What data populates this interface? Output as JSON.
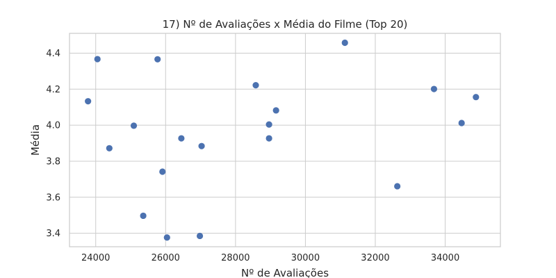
{
  "chart_data": {
    "type": "scatter",
    "title": "17) Nº de Avaliações x Média do Filme (Top 20)",
    "xlabel": "Nº de Avaliações",
    "ylabel": "Média",
    "xlim": [
      23250,
      35580
    ],
    "ylim": [
      3.325,
      4.51
    ],
    "xticks": [
      24000,
      26000,
      28000,
      30000,
      32000,
      34000
    ],
    "yticks": [
      3.4,
      3.6,
      3.8,
      4.0,
      4.2,
      4.4
    ],
    "xtick_labels": [
      "24000",
      "26000",
      "28000",
      "30000",
      "32000",
      "34000"
    ],
    "ytick_labels": [
      "3.4",
      "3.6",
      "3.8",
      "4.0",
      "4.2",
      "4.4"
    ],
    "grid": true,
    "colors": {
      "points": "#4c72b0",
      "grid": "#cccccc",
      "frame": "#cccccc",
      "background": "#ffffff"
    },
    "points": [
      {
        "x": 23780,
        "y": 4.133
      },
      {
        "x": 24050,
        "y": 4.367
      },
      {
        "x": 24390,
        "y": 3.872
      },
      {
        "x": 25090,
        "y": 3.997
      },
      {
        "x": 25360,
        "y": 3.497
      },
      {
        "x": 25770,
        "y": 4.366
      },
      {
        "x": 25910,
        "y": 3.742
      },
      {
        "x": 26040,
        "y": 3.376
      },
      {
        "x": 26450,
        "y": 3.927
      },
      {
        "x": 26980,
        "y": 3.385
      },
      {
        "x": 27030,
        "y": 3.884
      },
      {
        "x": 28580,
        "y": 4.222
      },
      {
        "x": 28960,
        "y": 4.004
      },
      {
        "x": 28960,
        "y": 3.927
      },
      {
        "x": 29160,
        "y": 4.082
      },
      {
        "x": 31130,
        "y": 4.458
      },
      {
        "x": 32630,
        "y": 3.661
      },
      {
        "x": 33680,
        "y": 4.201
      },
      {
        "x": 34470,
        "y": 4.012
      },
      {
        "x": 34880,
        "y": 4.156
      }
    ]
  }
}
